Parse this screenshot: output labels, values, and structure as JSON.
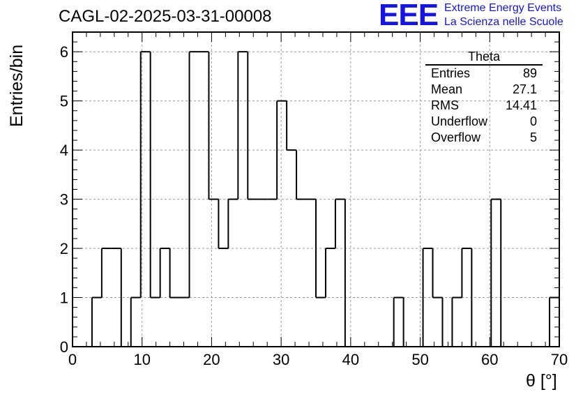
{
  "title": "CAGL-02-2025-03-31-00008",
  "logo": {
    "mark": "EEE",
    "line1": "Extreme Energy Events",
    "line2": "La Scienza nelle Scuole",
    "color": "#1414e6"
  },
  "stats": {
    "name": "Theta",
    "rows": [
      {
        "label": "Entries",
        "value": "89"
      },
      {
        "label": "Mean",
        "value": "27.1"
      },
      {
        "label": "RMS",
        "value": "14.41"
      },
      {
        "label": "Underflow",
        "value": "0"
      },
      {
        "label": "Overflow",
        "value": "5"
      }
    ]
  },
  "chart_data": {
    "type": "bar",
    "style": "step-histogram",
    "title": "CAGL-02-2025-03-31-00008",
    "xlabel": "θ [°]",
    "ylabel": "Entries/bin",
    "xlim": [
      0,
      70
    ],
    "ylim": [
      0,
      6.4
    ],
    "bin_width": 1.4,
    "bin_low_edges": [
      0,
      1.4,
      2.8,
      4.2,
      5.6,
      7.0,
      8.4,
      9.8,
      11.2,
      12.6,
      14.0,
      15.4,
      16.8,
      18.2,
      19.6,
      21.0,
      22.4,
      23.8,
      25.2,
      26.6,
      28.0,
      29.4,
      30.8,
      32.2,
      33.6,
      35.0,
      36.4,
      37.8,
      39.2,
      40.6,
      42.0,
      43.4,
      44.8,
      46.2,
      47.6,
      49.0,
      50.4,
      51.8,
      53.2,
      54.6,
      56.0,
      57.4,
      58.8,
      60.2,
      61.6,
      63.0,
      64.4,
      65.8,
      67.2,
      68.6
    ],
    "values": [
      0,
      0,
      1,
      2,
      2,
      0,
      1,
      6,
      1,
      2,
      1,
      1,
      6,
      6,
      3,
      2,
      3,
      6,
      3,
      3,
      3,
      5,
      4,
      3,
      3,
      1,
      2,
      3,
      0,
      0,
      0,
      0,
      0,
      1,
      0,
      0,
      2,
      1,
      0,
      1,
      2,
      0,
      0,
      3,
      0,
      0,
      0,
      0,
      0,
      1
    ],
    "xticks": [
      0,
      10,
      20,
      30,
      40,
      50,
      60,
      70
    ],
    "yticks": [
      0,
      1,
      2,
      3,
      4,
      5,
      6
    ],
    "grid": true,
    "line_color": "#000000",
    "grid_color": "#9a9a9a"
  }
}
